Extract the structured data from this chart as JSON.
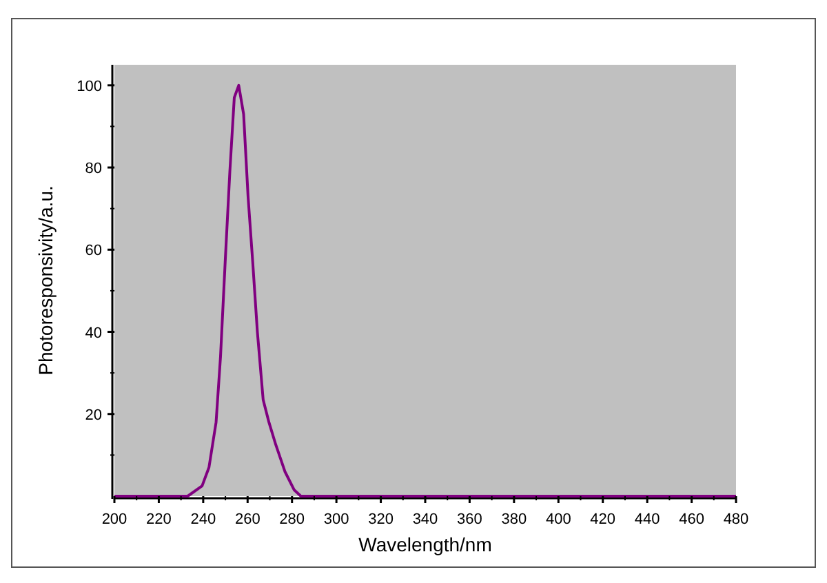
{
  "chart_data": {
    "type": "line",
    "xlabel": "Wavelength/nm",
    "ylabel": "Photoresponsivity/a.u.",
    "x": [
      200,
      233,
      239.5,
      242.6,
      245.8,
      247.8,
      249.9,
      252,
      254,
      256,
      258.2,
      260.2,
      262.3,
      264.4,
      267,
      269.6,
      272.7,
      276.8,
      281,
      284,
      480
    ],
    "series": [
      {
        "color": "#800080",
        "values": [
          0,
          0,
          2.5,
          7,
          18,
          34,
          57,
          79,
          97,
          100,
          93,
          73,
          57,
          40,
          23.5,
          18,
          12.5,
          6,
          1.5,
          0,
          0
        ]
      }
    ],
    "xlim": [
      200,
      480
    ],
    "xticks": [
      200,
      220,
      240,
      260,
      280,
      300,
      320,
      340,
      360,
      380,
      400,
      420,
      440,
      460,
      480
    ],
    "ylim": [
      0,
      105
    ],
    "yticks": [
      20,
      40,
      60,
      80,
      100
    ],
    "grid": false,
    "marker": "none",
    "line_style": "solid"
  }
}
